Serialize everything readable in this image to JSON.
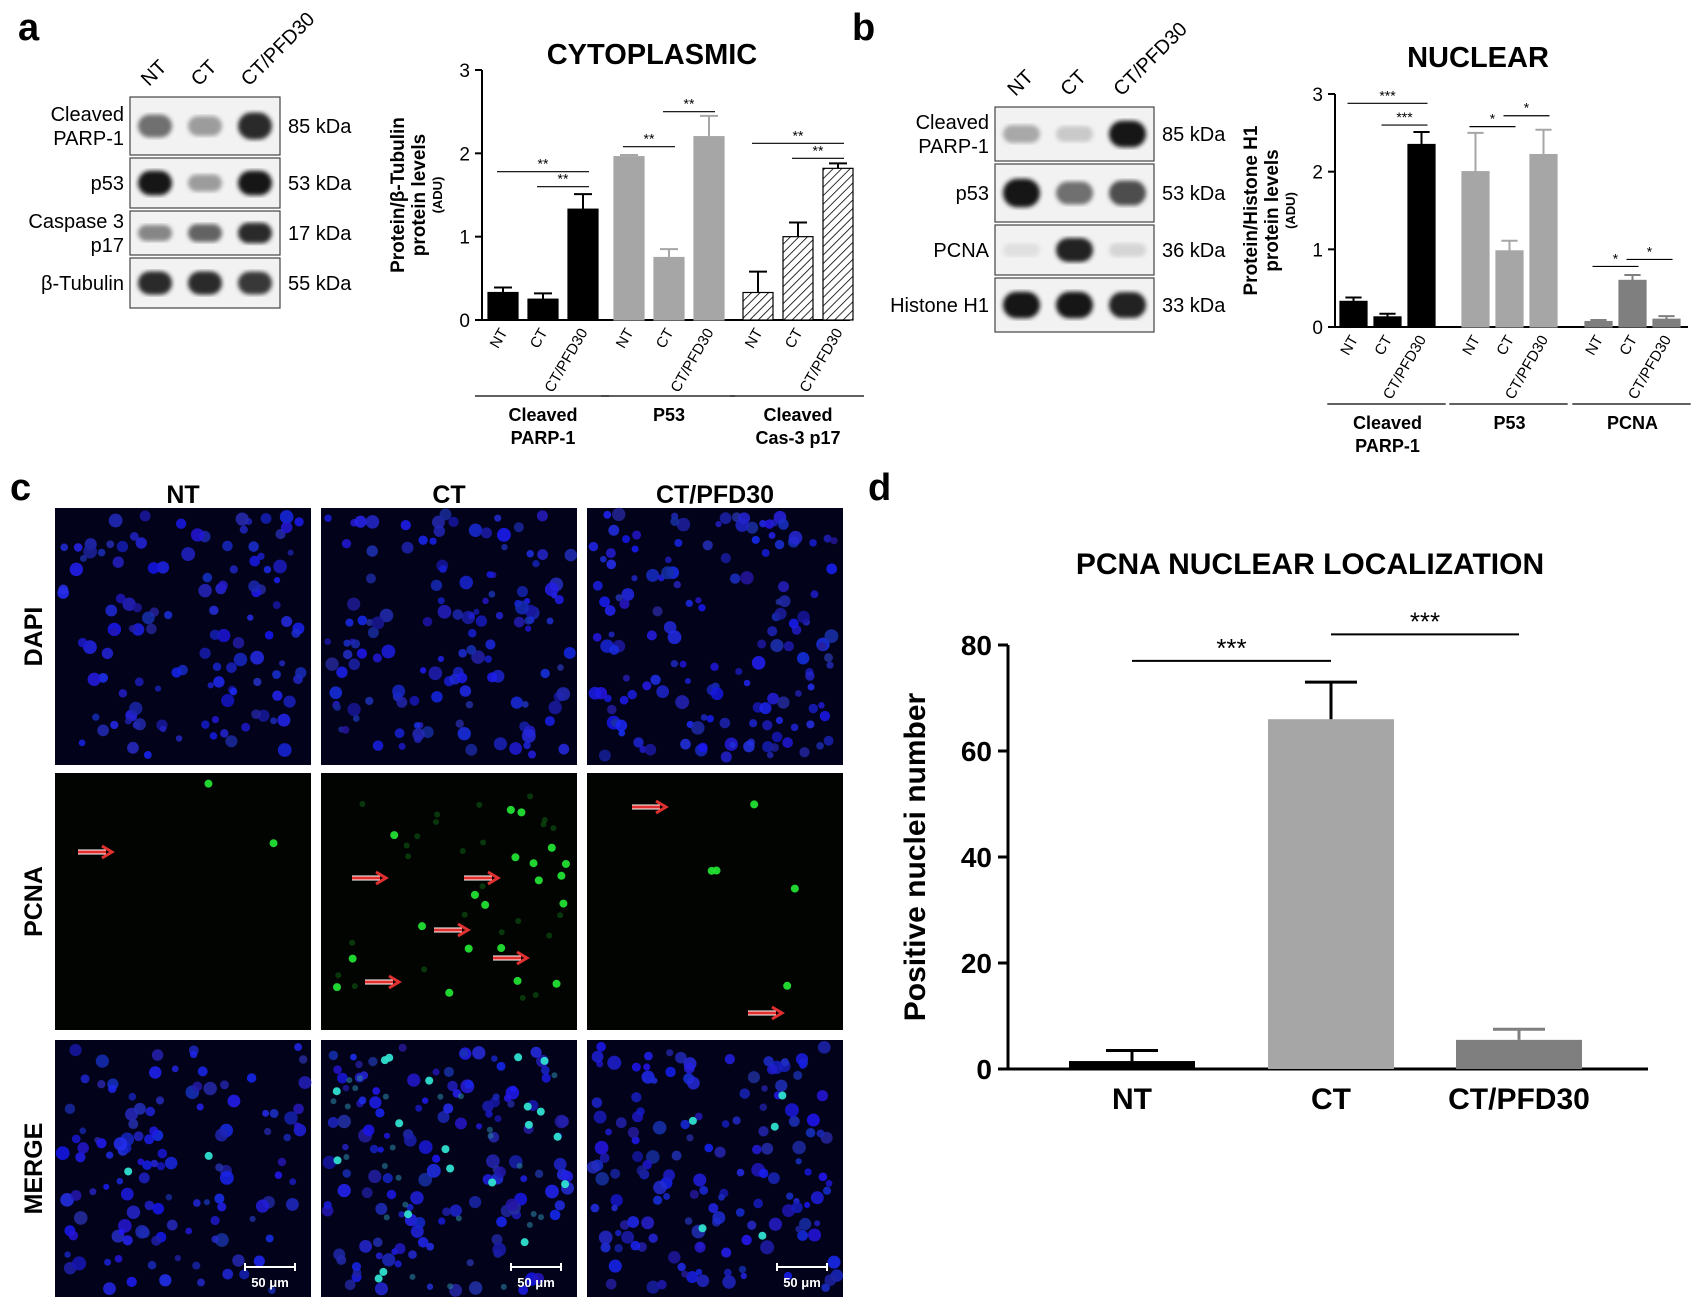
{
  "panel_letters": [
    "a",
    "b",
    "c",
    "d"
  ],
  "panel_a": {
    "blot": {
      "lanes": [
        "NT",
        "CT",
        "CT/PFD30"
      ],
      "rows": [
        {
          "label": [
            "Cleaved",
            "PARP-1"
          ],
          "kda": "85 kDa",
          "intensity": [
            0.55,
            0.35,
            0.85
          ]
        },
        {
          "label": [
            "p53"
          ],
          "kda": "53 kDa",
          "intensity": [
            0.95,
            0.35,
            0.95
          ]
        },
        {
          "label": [
            "Caspase 3",
            "p17"
          ],
          "kda": "17 kDa",
          "intensity": [
            0.45,
            0.6,
            0.85
          ]
        },
        {
          "label": [
            "β-Tubulin"
          ],
          "kda": "55 kDa",
          "intensity": [
            0.85,
            0.85,
            0.8
          ]
        }
      ]
    }
  },
  "panel_b": {
    "blot": {
      "lanes": [
        "NT",
        "CT",
        "CT/PFD30"
      ],
      "rows": [
        {
          "label": [
            "Cleaved",
            "PARP-1"
          ],
          "kda": "85 kDa",
          "intensity": [
            0.3,
            0.15,
            0.95
          ]
        },
        {
          "label": [
            "p53"
          ],
          "kda": "53 kDa",
          "intensity": [
            0.95,
            0.55,
            0.7
          ]
        },
        {
          "label": [
            "PCNA"
          ],
          "kda": "36 kDa",
          "intensity": [
            0.05,
            0.9,
            0.1
          ]
        },
        {
          "label": [
            "Histone H1"
          ],
          "kda": "33 kDa",
          "intensity": [
            0.95,
            0.95,
            0.9
          ]
        }
      ]
    }
  },
  "panel_c": {
    "columns": [
      "NT",
      "CT",
      "CT/PFD30"
    ],
    "rows": [
      "DAPI",
      "PCNA",
      "MERGE"
    ],
    "scale_bar": "50 μm"
  },
  "chart_data": [
    {
      "type": "bar",
      "title": "CYTOPLASMIC",
      "ylabel": [
        "Protein/β-Tubulin",
        "protein levels",
        "(ADU)"
      ],
      "ylim": [
        0,
        3
      ],
      "yticks": [
        0,
        1,
        2,
        3
      ],
      "groups": [
        {
          "name": [
            "Cleaved",
            "PARP-1"
          ],
          "categories": [
            "NT",
            "CT",
            "CT/PFD30"
          ],
          "values": [
            0.33,
            0.25,
            1.33
          ],
          "errors": [
            0.06,
            0.07,
            0.18
          ],
          "colors": [
            "#000000",
            "#000000",
            "#000000"
          ],
          "pattern": "solid"
        },
        {
          "name": [
            "P53"
          ],
          "categories": [
            "NT",
            "CT",
            "CT/PFD30"
          ],
          "values": [
            1.96,
            0.75,
            2.2
          ],
          "errors": [
            0.02,
            0.1,
            0.25
          ],
          "colors": [
            "#a6a6a6",
            "#a6a6a6",
            "#a6a6a6"
          ],
          "pattern": "solid"
        },
        {
          "name": [
            "Cleaved",
            "Cas-3 p17"
          ],
          "categories": [
            "NT",
            "CT",
            "CT/PFD30"
          ],
          "values": [
            0.33,
            1.0,
            1.82
          ],
          "errors": [
            0.25,
            0.17,
            0.06
          ],
          "colors": [
            "#ffffff",
            "#ffffff",
            "#ffffff"
          ],
          "pattern": "hatch"
        }
      ],
      "annotations": [
        {
          "group": 0,
          "from": 0,
          "to": 2,
          "text": "**",
          "level": 1.78
        },
        {
          "group": 0,
          "from": 1,
          "to": 2,
          "text": "**",
          "level": 1.6
        },
        {
          "group": 1,
          "from": 0,
          "to": 1,
          "text": "**",
          "level": 2.08
        },
        {
          "group": 1,
          "from": 1,
          "to": 2,
          "text": "**",
          "level": 2.5
        },
        {
          "group": 2,
          "from": 0,
          "to": 2,
          "text": "**",
          "level": 2.12
        },
        {
          "group": 2,
          "from": 1,
          "to": 2,
          "text": "**",
          "level": 1.94
        }
      ]
    },
    {
      "type": "bar",
      "title": "NUCLEAR",
      "ylabel": [
        "Protein/Histone H1",
        "protein levels",
        "(ADU)"
      ],
      "ylim": [
        0,
        3
      ],
      "yticks": [
        0,
        1,
        2,
        3
      ],
      "groups": [
        {
          "name": [
            "Cleaved",
            "PARP-1"
          ],
          "categories": [
            "NT",
            "CT",
            "CT/PFD30"
          ],
          "values": [
            0.33,
            0.13,
            2.35
          ],
          "errors": [
            0.05,
            0.04,
            0.16
          ],
          "colors": [
            "#000000",
            "#000000",
            "#000000"
          ],
          "pattern": "solid"
        },
        {
          "name": [
            "P53"
          ],
          "categories": [
            "NT",
            "CT",
            "CT/PFD30"
          ],
          "values": [
            2.0,
            0.98,
            2.22
          ],
          "errors": [
            0.5,
            0.13,
            0.32
          ],
          "colors": [
            "#a6a6a6",
            "#a6a6a6",
            "#a6a6a6"
          ],
          "pattern": "solid"
        },
        {
          "name": [
            "PCNA"
          ],
          "categories": [
            "NT",
            "CT",
            "CT/PFD30"
          ],
          "values": [
            0.07,
            0.6,
            0.1
          ],
          "errors": [
            0.02,
            0.07,
            0.04
          ],
          "colors": [
            "#7f7f7f",
            "#7f7f7f",
            "#7f7f7f"
          ],
          "pattern": "solid"
        }
      ],
      "annotations": [
        {
          "group": 0,
          "from": 0,
          "to": 2,
          "text": "***",
          "level": 2.88
        },
        {
          "group": 0,
          "from": 1,
          "to": 2,
          "text": "***",
          "level": 2.6
        },
        {
          "group": 1,
          "from": 0,
          "to": 1,
          "text": "*",
          "level": 2.58
        },
        {
          "group": 1,
          "from": 1,
          "to": 2,
          "text": "*",
          "level": 2.72
        },
        {
          "group": 2,
          "from": 0,
          "to": 1,
          "text": "*",
          "level": 0.78
        },
        {
          "group": 2,
          "from": 1,
          "to": 2,
          "text": "*",
          "level": 0.87
        }
      ]
    },
    {
      "type": "bar",
      "title": "PCNA NUCLEAR LOCALIZATION",
      "xlabel": "",
      "ylabel": "Positive nuclei number",
      "ylim": [
        0,
        80
      ],
      "yticks": [
        0,
        20,
        40,
        60,
        80
      ],
      "categories": [
        "NT",
        "CT",
        "CT/PFD30"
      ],
      "values": [
        1.5,
        66,
        5.5
      ],
      "errors": [
        2.0,
        7.0,
        2.0
      ],
      "colors": [
        "#000000",
        "#a6a6a6",
        "#7f7f7f"
      ],
      "annotations": [
        {
          "from": 0,
          "to": 1,
          "text": "***",
          "level": 77
        },
        {
          "from": 1,
          "to": 2,
          "text": "***",
          "level": 82
        }
      ]
    }
  ]
}
